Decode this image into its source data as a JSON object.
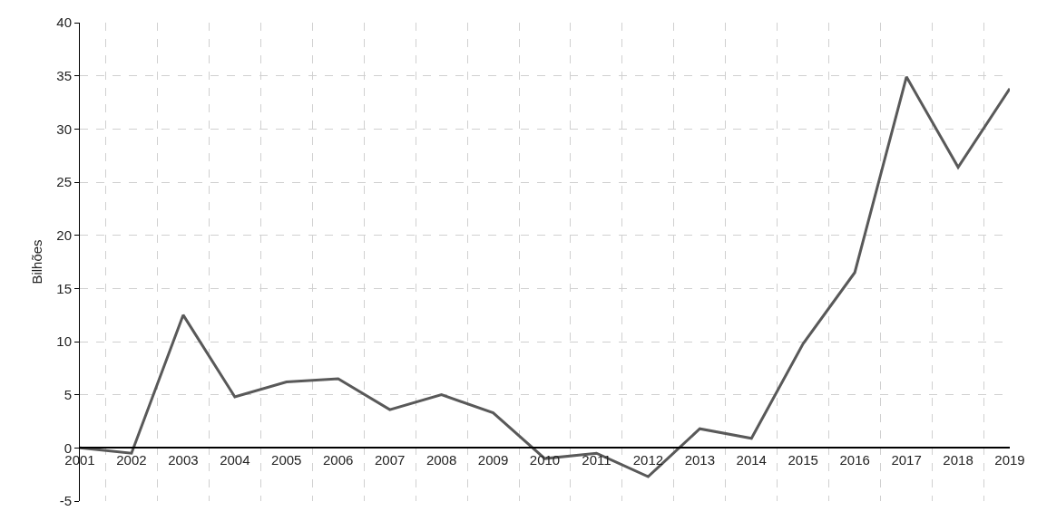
{
  "chart_data": {
    "type": "line",
    "ylabel": "Bilhões",
    "categories": [
      "2001",
      "2002",
      "2003",
      "2004",
      "2005",
      "2006",
      "2007",
      "2008",
      "2009",
      "2010",
      "2011",
      "2012",
      "2013",
      "2014",
      "2015",
      "2016",
      "2017",
      "2018",
      "2019"
    ],
    "series": [
      {
        "color": "#595959",
        "values": [
          0,
          -0.5,
          12.5,
          4.8,
          6.2,
          6.5,
          3.6,
          5.0,
          3.3,
          -1.0,
          -0.5,
          -2.7,
          1.8,
          0.9,
          9.8,
          16.5,
          34.9,
          26.4,
          33.8
        ]
      }
    ],
    "ylim": [
      -5,
      40
    ],
    "yticks": [
      -5,
      0,
      5,
      10,
      15,
      20,
      25,
      30,
      35,
      40
    ],
    "grid": true,
    "marker": "none",
    "line_style": "solid"
  }
}
